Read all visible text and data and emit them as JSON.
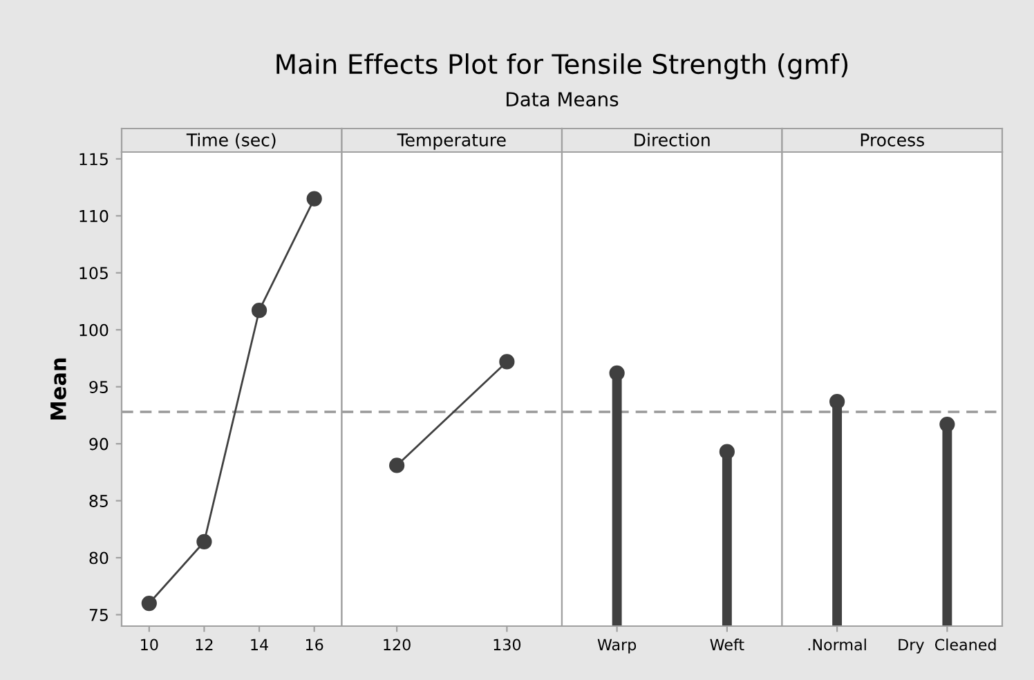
{
  "chart_data": [
    {
      "type": "line",
      "title": "Time (sec)",
      "ylabel": "Mean",
      "annotations": [
        "Main Effects Plot for Tensile Strength (gmf)",
        "Data Means"
      ],
      "categories": [
        "10",
        "12",
        "14",
        "16"
      ],
      "series": [
        {
          "color": "#404040",
          "values": [
            76.0,
            81.4,
            101.7,
            111.5
          ]
        }
      ],
      "ylim": [
        74,
        115.6
      ],
      "yticks": [
        75,
        80,
        85,
        90,
        95,
        100,
        105,
        110,
        115
      ],
      "ref_lines": [
        {
          "axis": "y",
          "value": 92.8,
          "color": "#999999",
          "line_style": "dashed"
        }
      ],
      "marker": "circle",
      "line_style": "solid"
    },
    {
      "type": "line",
      "title": "Temperature",
      "categories": [
        "120",
        "130"
      ],
      "series": [
        {
          "color": "#404040",
          "values": [
            88.1,
            97.2
          ]
        }
      ],
      "ylim": [
        74,
        115.6
      ],
      "yticks": [
        75,
        80,
        85,
        90,
        95,
        100,
        105,
        110,
        115
      ],
      "tick_labels": "x",
      "ref_lines": [
        {
          "axis": "y",
          "value": 92.8,
          "color": "#999999",
          "line_style": "dashed"
        }
      ],
      "marker": "circle",
      "line_style": "solid"
    },
    {
      "type": "lollipop",
      "title": "Direction",
      "categories": [
        "Warp",
        "Weft"
      ],
      "series": [
        {
          "color": "#404040",
          "values": [
            96.2,
            89.3
          ]
        }
      ],
      "ylim": [
        74,
        115.6
      ],
      "yticks": [
        75,
        80,
        85,
        90,
        95,
        100,
        105,
        110,
        115
      ],
      "tick_labels": "x",
      "ref_lines": [
        {
          "axis": "y",
          "value": 92.8,
          "color": "#999999",
          "line_style": "dashed"
        }
      ],
      "marker": "circle"
    },
    {
      "type": "lollipop",
      "title": "Process",
      "categories": [
        ".Normal",
        "Dry  Cleaned"
      ],
      "series": [
        {
          "color": "#404040",
          "values": [
            93.7,
            91.7
          ]
        }
      ],
      "ylim": [
        74,
        115.6
      ],
      "yticks": [
        75,
        80,
        85,
        90,
        95,
        100,
        105,
        110,
        115
      ],
      "tick_labels": "x",
      "ref_lines": [
        {
          "axis": "y",
          "value": 92.8,
          "color": "#999999",
          "line_style": "dashed"
        }
      ],
      "marker": "circle"
    }
  ]
}
